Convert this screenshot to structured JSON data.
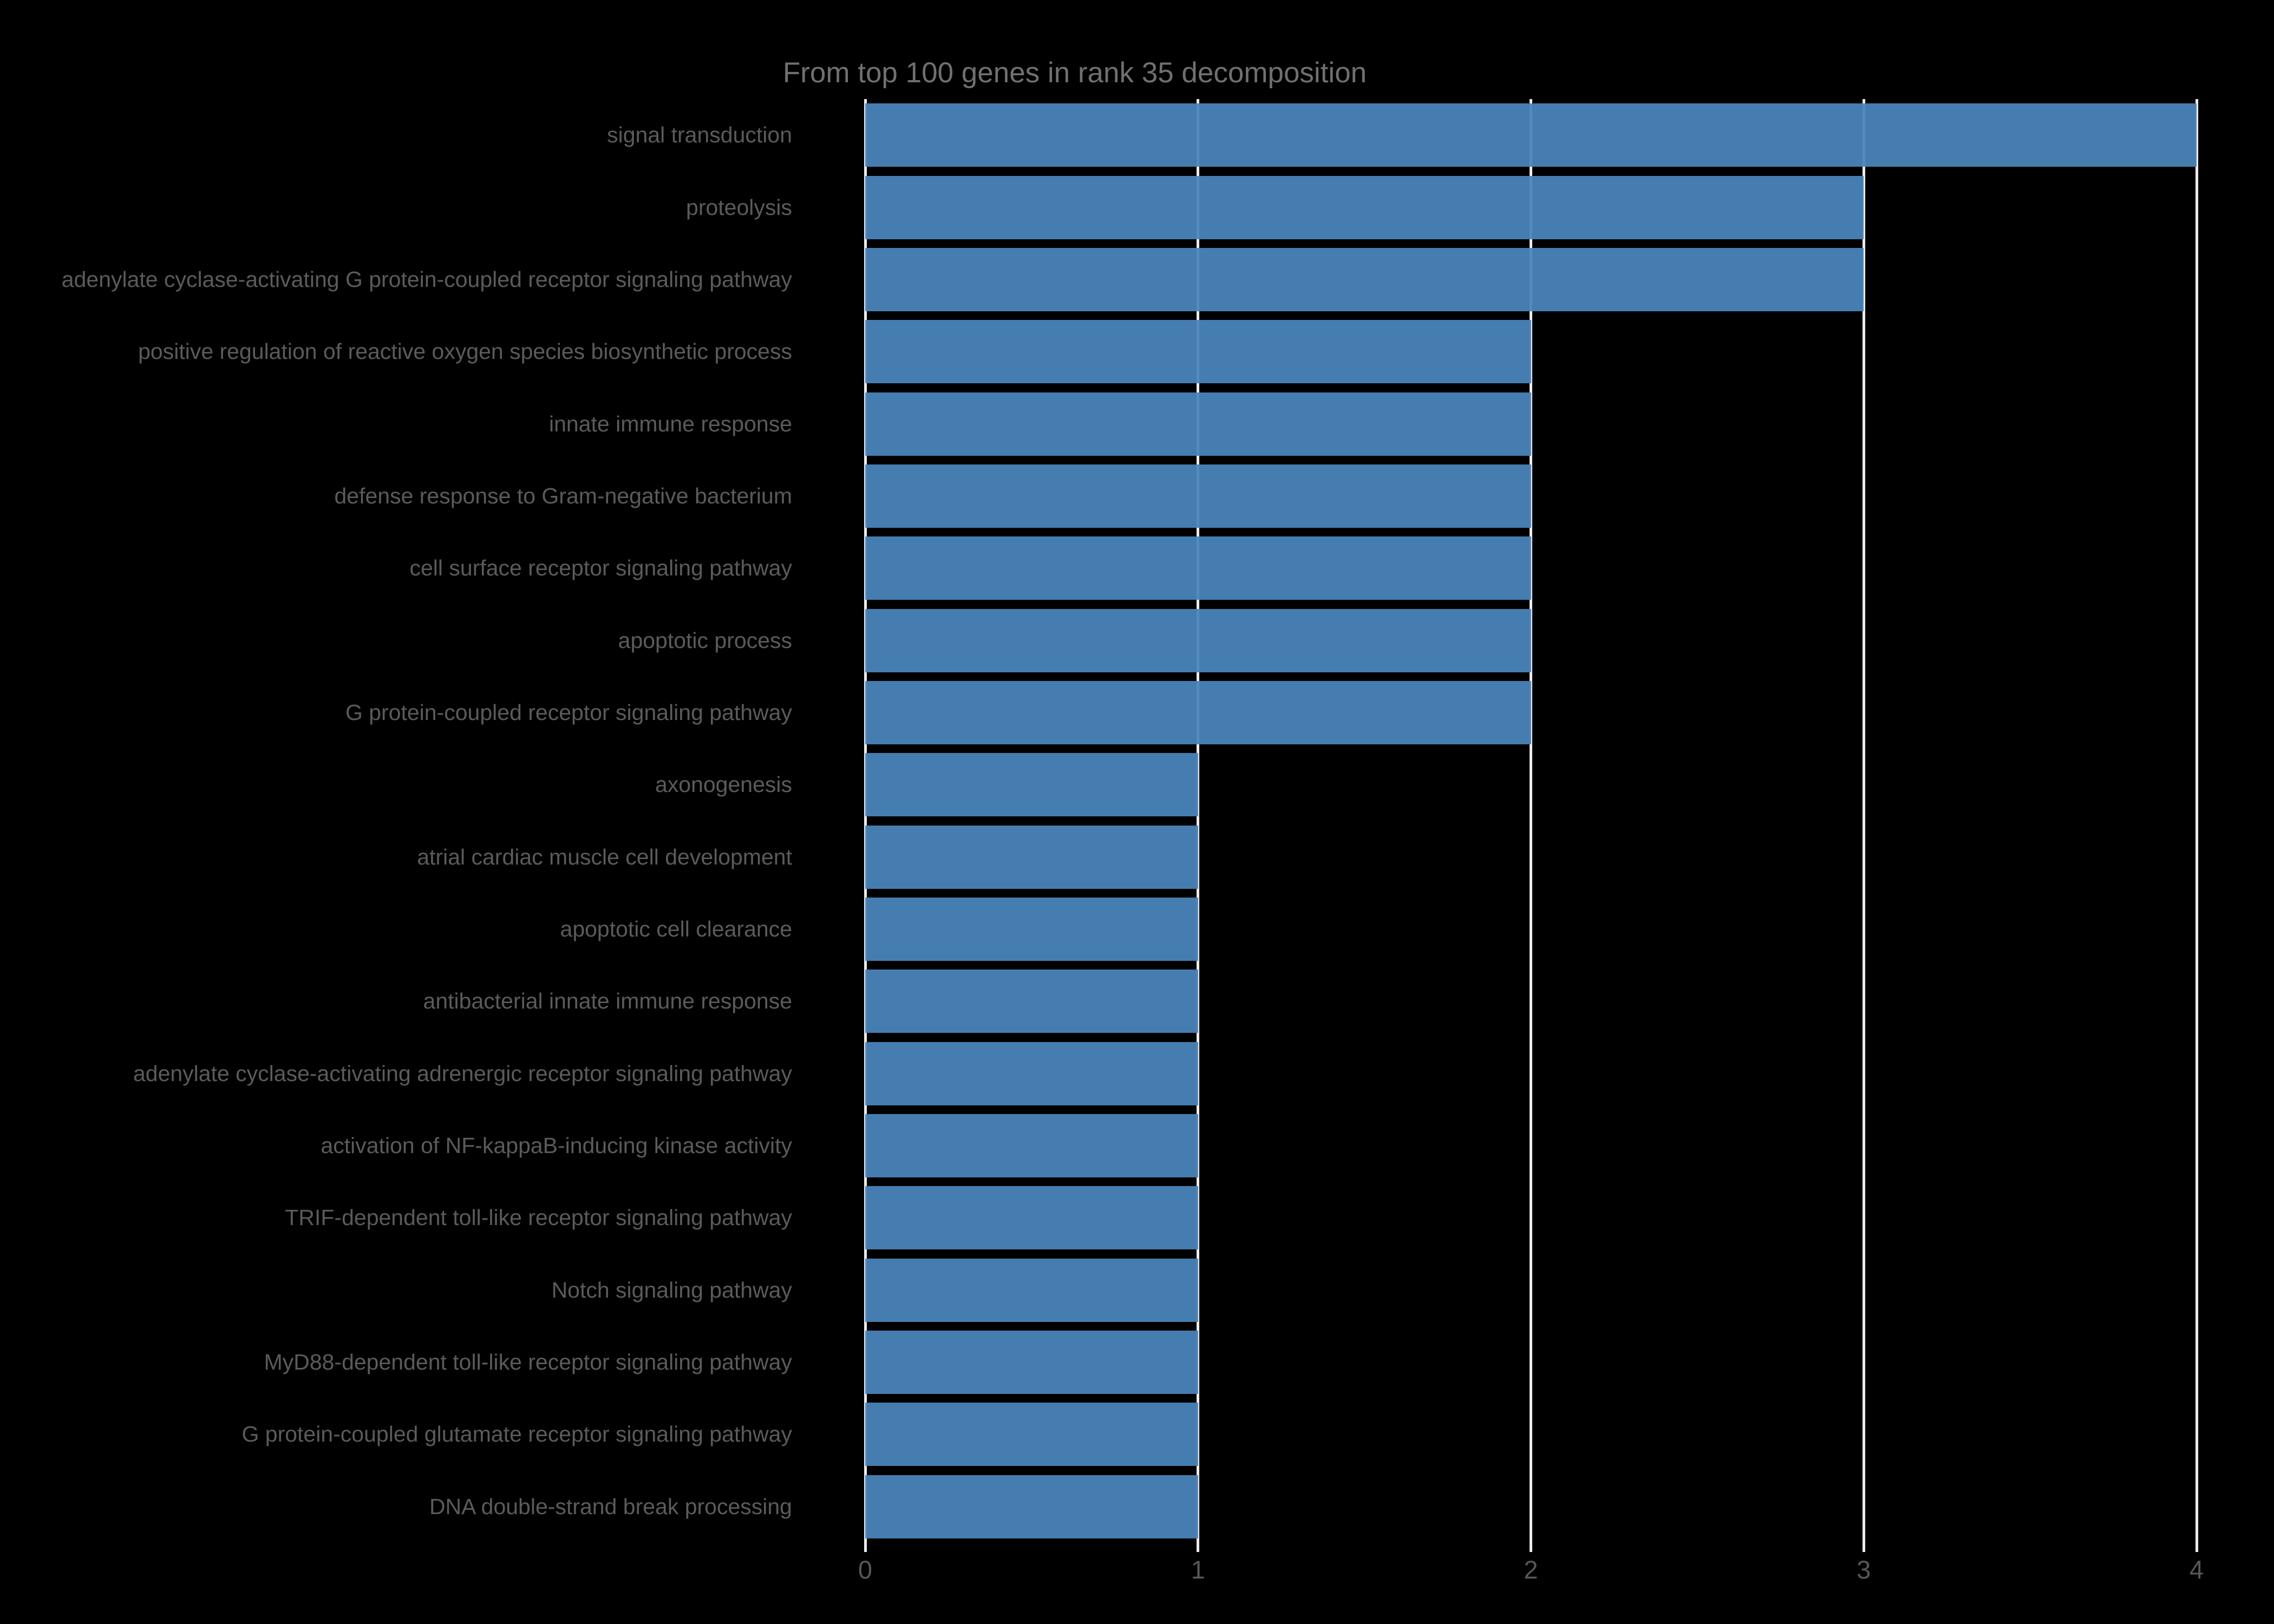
{
  "chart_data": {
    "type": "bar",
    "orientation": "horizontal",
    "title": "From top 100 genes in rank 35 decomposition",
    "categories": [
      "signal transduction",
      "proteolysis",
      "adenylate cyclase-activating G protein-coupled receptor signaling pathway",
      "positive regulation of reactive oxygen species biosynthetic process",
      "innate immune response",
      "defense response to Gram-negative bacterium",
      "cell surface receptor signaling pathway",
      "apoptotic process",
      "G protein-coupled receptor signaling pathway",
      "axonogenesis",
      "atrial cardiac muscle cell development",
      "apoptotic cell clearance",
      "antibacterial innate immune response",
      "adenylate cyclase-activating adrenergic receptor signaling pathway",
      "activation of NF-kappaB-inducing kinase activity",
      "TRIF-dependent toll-like receptor signaling pathway",
      "Notch signaling pathway",
      "MyD88-dependent toll-like receptor signaling pathway",
      "G protein-coupled glutamate receptor signaling pathway",
      "DNA double-strand break processing"
    ],
    "values": [
      4,
      3,
      3,
      2,
      2,
      2,
      2,
      2,
      2,
      1,
      1,
      1,
      1,
      1,
      1,
      1,
      1,
      1,
      1,
      1
    ],
    "xlabel": "",
    "ylabel": "",
    "xlim": [
      0,
      4
    ],
    "xticks": [
      "0",
      "1",
      "2",
      "3",
      "4"
    ],
    "grid": true,
    "legend": "none",
    "colors": {
      "background": "#000000",
      "bar": "#4985BB",
      "gridline": "#EBEBEE",
      "title_text": "#707070",
      "category_text": "#5B5B5B",
      "tick_text": "#575757"
    }
  }
}
